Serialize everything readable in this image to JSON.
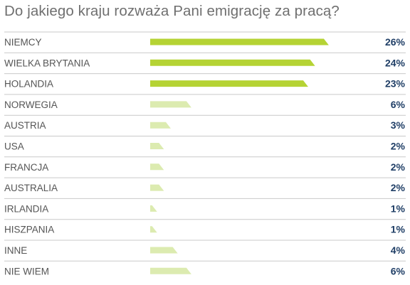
{
  "chart_data": {
    "type": "bar",
    "title": "Do jakiego kraju rozważa Pani emigrację za pracą?",
    "categories": [
      "NIEMCY",
      "WIELKA BRYTANIA",
      "HOLANDIA",
      "NORWEGIA",
      "AUSTRIA",
      "USA",
      "FRANCJA",
      "AUSTRALIA",
      "IRLANDIA",
      "HISZPANIA",
      "INNE",
      "NIE WIEM"
    ],
    "values": [
      26,
      24,
      23,
      6,
      3,
      2,
      2,
      2,
      1,
      1,
      4,
      6
    ],
    "value_labels": [
      "26%",
      "24%",
      "23%",
      "6%",
      "3%",
      "2%",
      "2%",
      "2%",
      "1%",
      "1%",
      "4%",
      "6%"
    ],
    "orientation": "horizontal",
    "grid": false,
    "colors": {
      "top": "#b5d334",
      "rest": "#dcebb0",
      "value_text": "#1f3e66",
      "label_text": "#555555",
      "title": "#6f6f6f",
      "rule": "#c9c9c9"
    }
  }
}
